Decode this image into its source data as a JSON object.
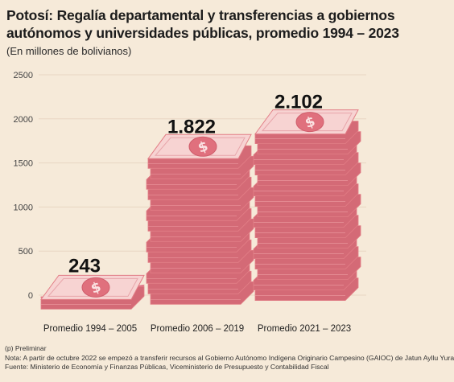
{
  "header": {
    "title_line1": "Potosí: Regalía departamental y transferencias a gobiernos",
    "title_line2": "autónomos y universidades públicas, promedio 1994 – 2023",
    "subtitle": "(En millones de bolivianos)"
  },
  "chart_data": {
    "type": "bar",
    "title": "Potosí: Regalía departamental y transferencias a gobiernos autónomos y universidades públicas, promedio 1994 – 2023",
    "ylabel": "(En millones de bolivianos)",
    "categories": [
      "Promedio 1994 – 2005",
      "Promedio 2006 – 2019",
      "Promedio 2021 – 2023"
    ],
    "values": [
      243,
      1822,
      2102
    ],
    "value_labels": [
      "243",
      "1.822",
      "2.102"
    ],
    "ylim": [
      0,
      2500
    ],
    "yticks": [
      0,
      500,
      1000,
      1500,
      2000,
      2500
    ],
    "grid": true,
    "bar_style": "stacks of pink banknotes with dollar sign",
    "colors": {
      "note_face": "#f7d3d2",
      "note_edge": "#e27e86",
      "note_side": "#d46a76",
      "first_bar_base": "#df6a8c",
      "grid": "#e8d6c2",
      "background": "#f6ead9"
    }
  },
  "notes": {
    "line1": "(p) Preliminar",
    "line2": "Nota: A partir de octubre 2022 se empezó a transferir recursos al Gobierno Autónomo Indígena Originario Campesino (GAIOC) de Jatun Ayllu Yura",
    "line3": "Fuente: Ministerio de Economía y Finanzas Públicas, Viceministerio de Presupuesto y Contabilidad Fiscal"
  }
}
